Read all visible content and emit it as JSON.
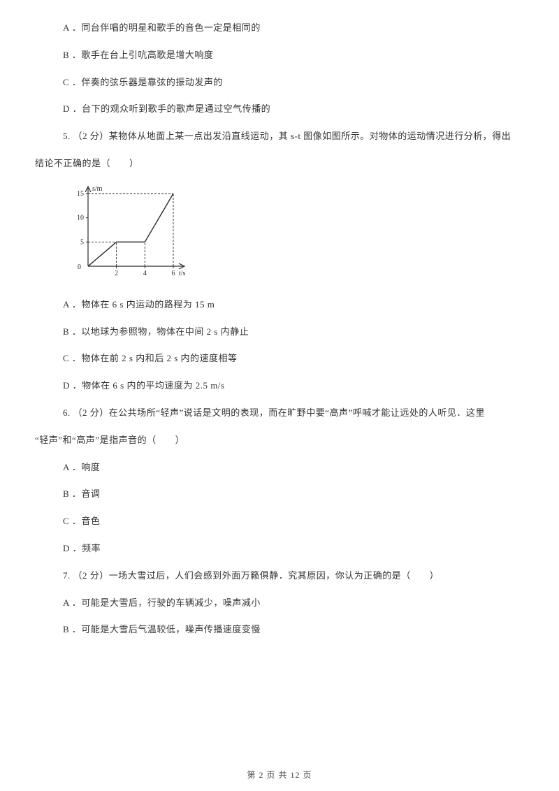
{
  "q4": {
    "opts": {
      "a": "A ．同台伴唱的明星和歌手的音色一定是相同的",
      "b": "B ．歌手在台上引吭高歌是增大响度",
      "c": "C ．伴奏的弦乐器是靠弦的振动发声的",
      "d": "D ．台下的观众听到歌手的歌声是通过空气传播的"
    }
  },
  "q5": {
    "stem": "5. （2 分）某物体从地面上某一点出发沿直线运动，其 s-t 图像如图所示。对物体的运动情况进行分析，得出",
    "stem2": "结论不正确的是（　　）",
    "chart": {
      "y_label": "s/m",
      "x_label": "t/s",
      "y_ticks": [
        0,
        5,
        10,
        15
      ],
      "x_ticks": [
        0,
        2,
        4,
        6
      ],
      "points": [
        [
          0,
          0
        ],
        [
          2,
          5
        ],
        [
          4,
          5
        ],
        [
          6,
          15
        ]
      ],
      "axis_color": "#2a2a2a",
      "line_color": "#2a2a2a",
      "width": 170,
      "height": 140
    },
    "opts": {
      "a": "A ．物体在 6 s 内运动的路程为 15 m",
      "b": "B ．以地球为参照物，物体在中间 2 s 内静止",
      "c": "C ．物体在前 2 s 内和后 2 s 内的速度相等",
      "d": "D ．物体在 6 s 内的平均速度为 2.5 m/s"
    }
  },
  "q6": {
    "stem": "6. （2 分）在公共场所“轻声”说话是文明的表现，而在旷野中要“高声”呼喊才能让远处的人听见．这里",
    "stem2": "“轻声”和“高声”是指声音的（　　）",
    "opts": {
      "a": "A ．响度",
      "b": "B ．音调",
      "c": "C ．音色",
      "d": "D ．频率"
    }
  },
  "q7": {
    "stem": "7. （2 分）一场大雪过后，人们会感到外面万籁俱静．究其原因，你认为正确的是（　　）",
    "opts": {
      "a": "A ．可能是大雪后，行驶的车辆减少，噪声减小",
      "b": "B ．可能是大雪后气温较低，噪声传播速度变慢"
    }
  },
  "footer": "第 2 页 共 12 页"
}
